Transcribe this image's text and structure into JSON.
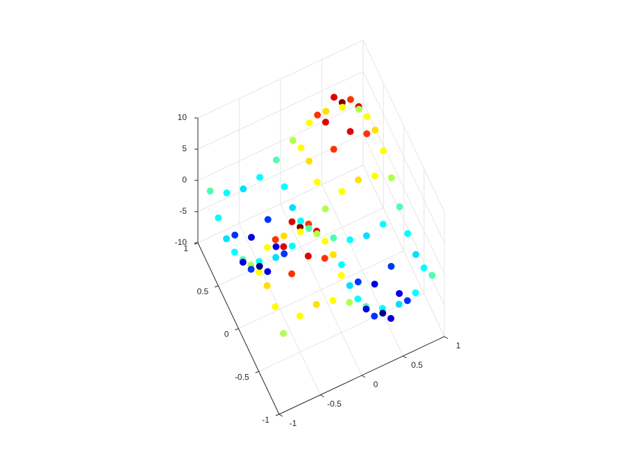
{
  "chart_data": {
    "type": "scatter3d",
    "colormap": "jet",
    "grid": true,
    "xlim": [
      -1,
      1
    ],
    "ylim": [
      -1,
      1
    ],
    "zlim": [
      -10,
      10
    ],
    "xticks": [
      -1,
      -0.5,
      0,
      0.5,
      1
    ],
    "yticks": [
      -1,
      -0.5,
      0,
      0.5,
      1
    ],
    "zticks": [
      -10,
      -5,
      0,
      5,
      10
    ],
    "series": [
      {
        "x": [
          -0.9,
          -0.9,
          -0.9,
          -0.9,
          -0.9,
          -0.9,
          -0.9,
          -0.9,
          -0.9,
          -0.9,
          -0.7,
          -0.7,
          -0.7,
          -0.7,
          -0.7,
          -0.7,
          -0.7,
          -0.7,
          -0.7,
          -0.7,
          -0.5,
          -0.5,
          -0.5,
          -0.5,
          -0.5,
          -0.5,
          -0.5,
          -0.5,
          -0.5,
          -0.5,
          -0.3,
          -0.3,
          -0.3,
          -0.3,
          -0.3,
          -0.3,
          -0.3,
          -0.3,
          -0.3,
          -0.3,
          -0.1,
          -0.1,
          -0.1,
          -0.1,
          -0.1,
          -0.1,
          -0.1,
          -0.1,
          -0.1,
          -0.1,
          0.1,
          0.1,
          0.1,
          0.1,
          0.1,
          0.1,
          0.1,
          0.1,
          0.1,
          0.1,
          0.3,
          0.3,
          0.3,
          0.3,
          0.3,
          0.3,
          0.3,
          0.3,
          0.3,
          0.3,
          0.5,
          0.5,
          0.5,
          0.5,
          0.5,
          0.5,
          0.5,
          0.5,
          0.5,
          0.5,
          0.7,
          0.7,
          0.7,
          0.7,
          0.7,
          0.7,
          0.7,
          0.7,
          0.7,
          0.7,
          0.9,
          0.9,
          0.9,
          0.9,
          0.9,
          0.9,
          0.9,
          0.9,
          0.9,
          0.9
        ],
        "y": [
          -0.9,
          -0.7,
          -0.5,
          -0.3,
          -0.1,
          0.1,
          0.3,
          0.5,
          0.7,
          0.9,
          -0.9,
          -0.7,
          -0.5,
          -0.3,
          -0.1,
          0.1,
          0.3,
          0.5,
          0.7,
          0.9,
          -0.9,
          -0.7,
          -0.5,
          -0.3,
          -0.1,
          0.1,
          0.3,
          0.5,
          0.7,
          0.9,
          -0.9,
          -0.7,
          -0.5,
          -0.3,
          -0.1,
          0.1,
          0.3,
          0.5,
          0.7,
          0.9,
          -0.9,
          -0.7,
          -0.5,
          -0.3,
          -0.1,
          0.1,
          0.3,
          0.5,
          0.7,
          0.9,
          -0.9,
          -0.7,
          -0.5,
          -0.3,
          -0.1,
          0.1,
          0.3,
          0.5,
          0.7,
          0.9,
          -0.9,
          -0.7,
          -0.5,
          -0.3,
          -0.1,
          0.1,
          0.3,
          0.5,
          0.7,
          0.9,
          -0.9,
          -0.7,
          -0.5,
          -0.3,
          -0.1,
          0.1,
          0.3,
          0.5,
          0.7,
          0.9,
          -0.9,
          -0.7,
          -0.5,
          -0.3,
          -0.1,
          0.1,
          0.3,
          0.5,
          0.7,
          0.9,
          -0.9,
          -0.7,
          -0.5,
          -0.3,
          -0.1,
          0.1,
          0.3,
          0.5,
          0.7,
          0.9
        ],
        "z": [
          0.95,
          2.5,
          3.1,
          2.5,
          0.95,
          -0.95,
          -2.5,
          -3.1,
          -2.5,
          -0.95,
          2.5,
          6.5,
          8.1,
          6.5,
          2.5,
          -2.5,
          -6.5,
          -8.1,
          -6.5,
          -2.5,
          3.1,
          8.1,
          10,
          8.1,
          3.1,
          -3.1,
          -8.1,
          -10,
          -8.1,
          -3.1,
          2.5,
          6.5,
          8.1,
          6.5,
          2.5,
          -2.5,
          -6.5,
          -8.1,
          -6.5,
          -2.5,
          0.95,
          2.5,
          3.1,
          2.5,
          0.95,
          -0.95,
          -2.5,
          -3.1,
          -2.5,
          -0.95,
          -0.95,
          -2.5,
          -3.1,
          -2.5,
          -0.95,
          0.95,
          2.5,
          3.1,
          2.5,
          0.95,
          -2.5,
          -6.5,
          -8.1,
          -6.5,
          -2.5,
          2.5,
          6.5,
          8.1,
          6.5,
          2.5,
          -3.1,
          -8.1,
          -10,
          -8.1,
          -3.1,
          3.1,
          8.1,
          10,
          8.1,
          3.1,
          -2.5,
          -6.5,
          -8.1,
          -6.5,
          -2.5,
          2.5,
          6.5,
          8.1,
          6.5,
          2.5,
          -0.95,
          -2.5,
          -3.1,
          -2.5,
          -0.95,
          0.95,
          2.5,
          3.1,
          2.5,
          0.95
        ]
      }
    ]
  }
}
